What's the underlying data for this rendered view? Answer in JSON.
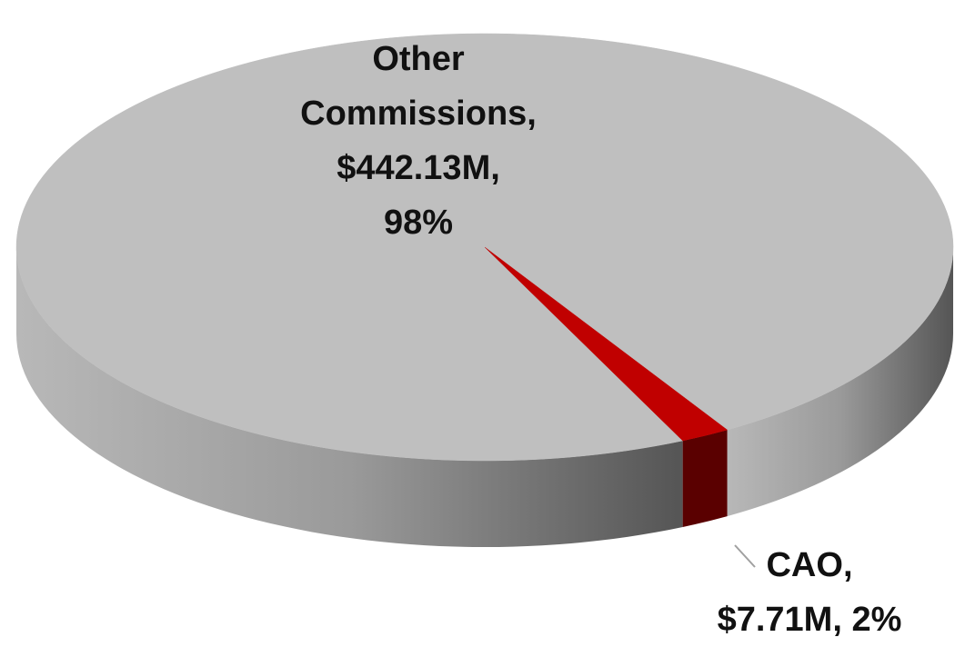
{
  "chart_data": {
    "type": "pie",
    "categories": [
      "Other Commissions",
      "CAO"
    ],
    "values": [
      442.13,
      7.71
    ],
    "value_labels": [
      "$442.13M",
      "$7.71M"
    ],
    "percent_labels": [
      "98%",
      "2%"
    ],
    "label_separator": ",",
    "colors": [
      "#bfbfbf",
      "#c00000"
    ],
    "side_colors": [
      "#8c8c8c",
      "#5a0000"
    ]
  }
}
